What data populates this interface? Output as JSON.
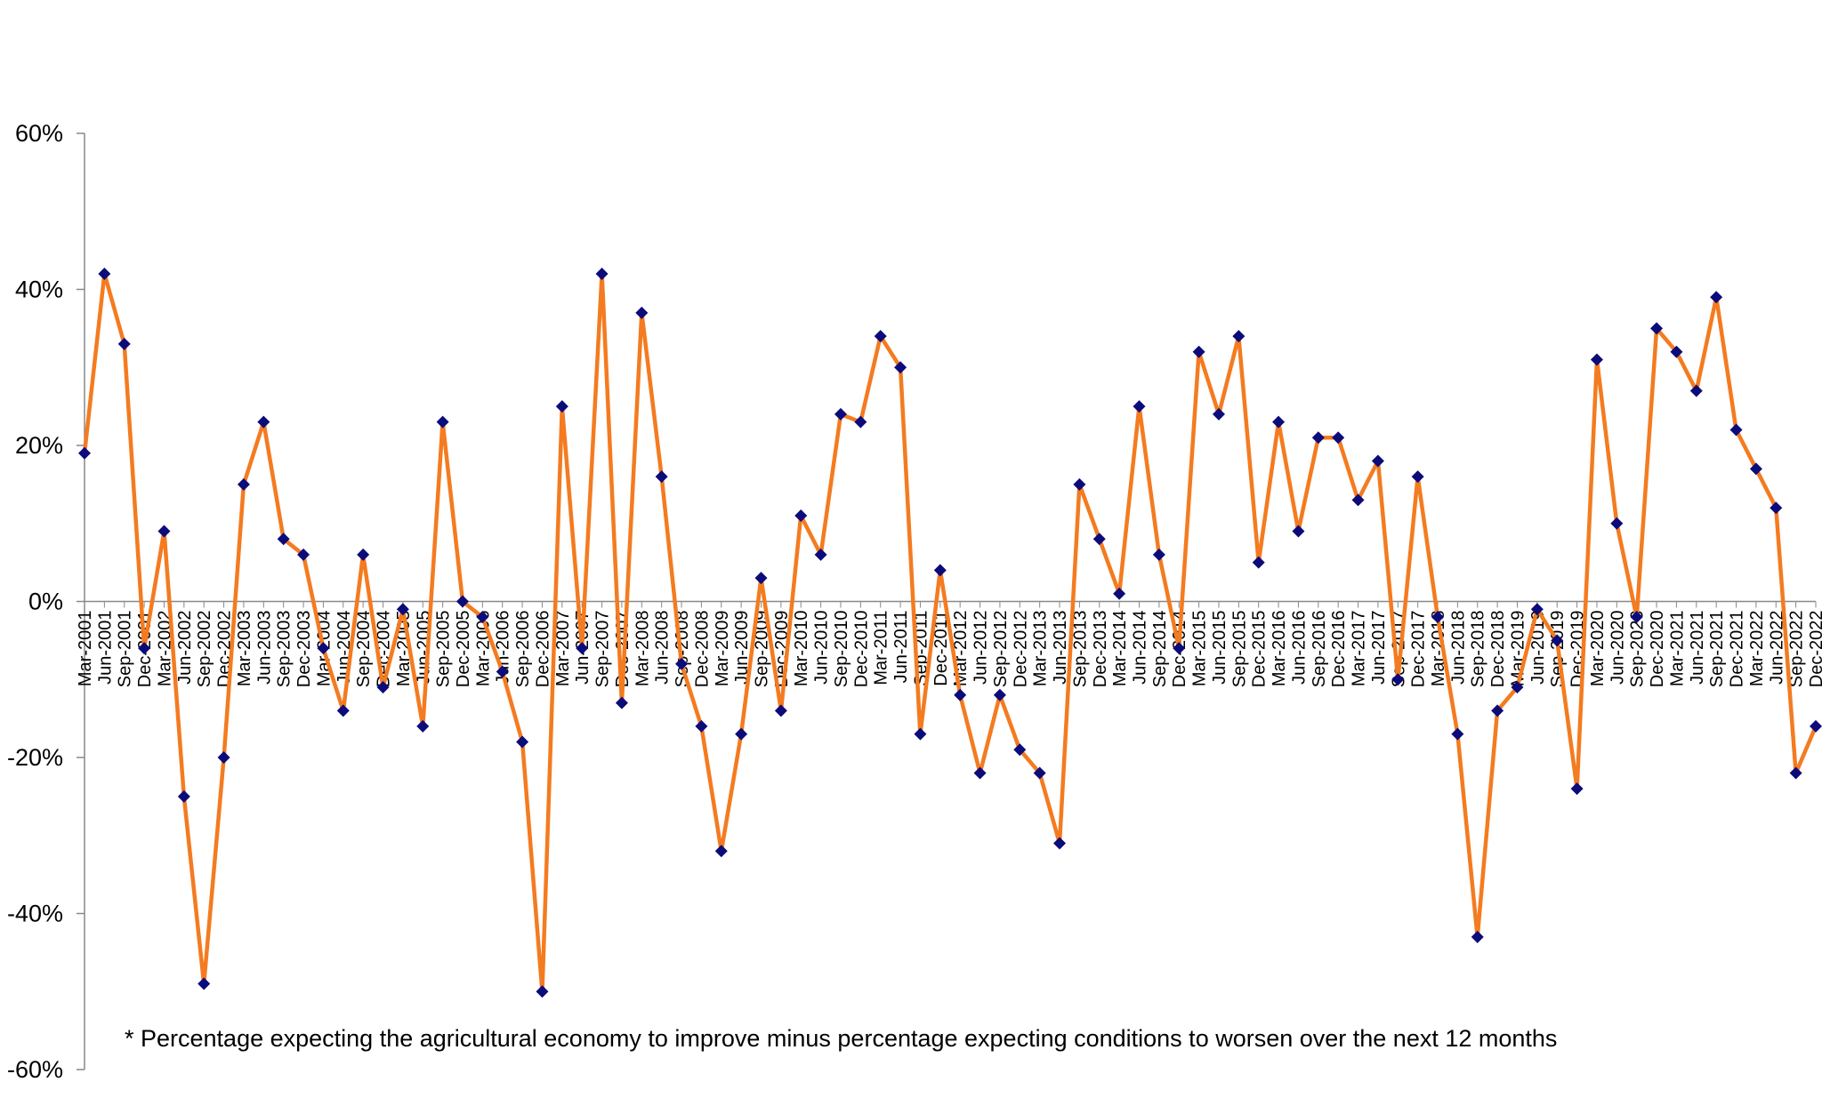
{
  "chart_data": {
    "type": "line",
    "title": "",
    "xlabel": "",
    "ylabel": "",
    "ylim": [
      -60,
      60
    ],
    "yticks": [
      60,
      40,
      20,
      0,
      -20,
      -40,
      -60
    ],
    "ytick_labels": [
      "60%",
      "40%",
      "20%",
      "0%",
      "-20%",
      "-40%",
      "-60%"
    ],
    "grid": false,
    "legend": "none",
    "line_color": "#F47B20",
    "marker_color": "#0B0B7A",
    "x": [
      "Mar-2001",
      "Jun-2001",
      "Sep-2001",
      "Dec-2001",
      "Mar-2002",
      "Jun-2002",
      "Sep-2002",
      "Dec-2002",
      "Mar-2003",
      "Jun-2003",
      "Sep-2003",
      "Dec-2003",
      "Mar-2004",
      "Jun-2004",
      "Sep-2004",
      "Dec-2004",
      "Mar-2005",
      "Jun-2005",
      "Sep-2005",
      "Dec-2005",
      "Mar-2006",
      "Jun-2006",
      "Sep-2006",
      "Dec-2006",
      "Mar-2007",
      "Jun-2007",
      "Sep-2007",
      "Dec-2007",
      "Mar-2008",
      "Jun-2008",
      "Sep-2008",
      "Dec-2008",
      "Mar-2009",
      "Jun-2009",
      "Sep-2009",
      "Dec-2009",
      "Mar-2010",
      "Jun-2010",
      "Sep-2010",
      "Dec-2010",
      "Mar-2011",
      "Jun-2011",
      "Sep-2011",
      "Dec-2011",
      "Mar-2012",
      "Jun-2012",
      "Sep-2012",
      "Dec-2012",
      "Mar-2013",
      "Jun-2013",
      "Sep-2013",
      "Dec-2013",
      "Mar-2014",
      "Jun-2014",
      "Sep-2014",
      "Dec-2014",
      "Mar-2015",
      "Jun-2015",
      "Sep-2015",
      "Dec-2015",
      "Mar-2016",
      "Jun-2016",
      "Sep-2016",
      "Dec-2016",
      "Mar-2017",
      "Jun-2017",
      "Sep-2017",
      "Dec-2017",
      "Mar-2018",
      "Jun-2018",
      "Sep-2018",
      "Dec-2018",
      "Mar-2019",
      "Jun-2019",
      "Sep-2019",
      "Dec-2019",
      "Mar-2020",
      "Jun-2020",
      "Sep-2020",
      "Dec-2020",
      "Mar-2021",
      "Jun-2021",
      "Sep-2021",
      "Dec-2021",
      "Mar-2022",
      "Jun-2022",
      "Sep-2022",
      "Dec-2022"
    ],
    "xtick_labels": [
      "Mar-2001",
      "Jun-2001",
      "Sep-2001",
      "Dec-2001",
      "Mar-2002",
      "Jun-2002",
      "Sep-2002",
      "Dec-2002",
      "Mar-2003",
      "Jun-2003",
      "Sep-2003",
      "Dec-2003",
      "Mar-2004",
      "Jun-2004",
      "Sep-2004",
      "Dec-2004",
      "Mar-2005",
      "Jun-2005",
      "Sep-2005",
      "Dec-2005",
      "Mar-2006",
      "Jun-2006",
      "Sep-2006",
      "Dec-2006",
      "Mar-2007",
      "Jun-2007",
      "Sep-2007",
      "Dec-2007",
      "Mar-2008",
      "Jun-2008",
      "Sep-2008",
      "Dec-2008",
      "Mar-2009",
      "Jun-2009",
      "Sep-2009",
      "Dec-2009",
      "Mar-2010",
      "Jun-2010",
      "Sep-2010",
      "Dec-2010",
      "Mar-2011",
      "Jun-2011",
      "Sep-2011",
      "Dec-2011",
      "Mar-2012",
      "Jun-2012",
      "Sep-2012",
      "Dec-2012",
      "Mar-2013",
      "Jun-2013",
      "Sep-2013",
      "Dec-2013",
      "Mar-2014",
      "Jun-2014",
      "Sep-2014",
      "Dec-2014",
      "Mar-2015",
      "Jun-2015",
      "Sep-2015",
      "Dec-2015",
      "Mar-2016",
      "Jun-2016",
      "Sep-2016",
      "Dec-2016",
      "Mar-2017",
      "Jun-2017",
      "Sep-2017",
      "Dec-2017",
      "Mar-2018",
      "Jun-2018",
      "Sep-2018",
      "Dec-2018",
      "Mar-2019",
      "Jun-2019",
      "Sep-2019",
      "Dec-2019",
      "Mar-2020",
      "Jun-2020",
      "Sep-2020",
      "Dec-2020",
      "Mar-2021",
      "Jun-2021",
      "Sep-2021",
      "Dec-2021",
      "Mar-2022",
      "Jun-2022",
      "Sep-2022",
      "Dec-2022"
    ],
    "series": [
      {
        "values": [
          19,
          42,
          33,
          -6,
          9,
          -25,
          -49,
          -20,
          15,
          23,
          8,
          6,
          -6,
          -14,
          6,
          -11,
          -1,
          -16,
          23,
          0,
          -2,
          -9,
          -18,
          -50,
          25,
          -6,
          42,
          -13,
          37,
          16,
          -8,
          -16,
          -32,
          -17,
          3,
          -14,
          11,
          6,
          24,
          23,
          34,
          30,
          -17,
          4,
          -12,
          -22,
          -12,
          -19,
          -22,
          -31,
          15,
          8,
          1,
          25,
          6,
          -6,
          32,
          24,
          34,
          5,
          23,
          9,
          21,
          21,
          13,
          18,
          -10,
          16,
          -2,
          -17,
          -43,
          -14,
          -11,
          -1,
          -5,
          -24,
          31,
          10,
          -2,
          35,
          32,
          27,
          39,
          22,
          17,
          12,
          -22,
          -16
        ]
      }
    ],
    "annotations": [
      "* Percentage expecting the agricultural economy to improve minus percentage expecting conditions to worsen over the next 12 months"
    ]
  }
}
